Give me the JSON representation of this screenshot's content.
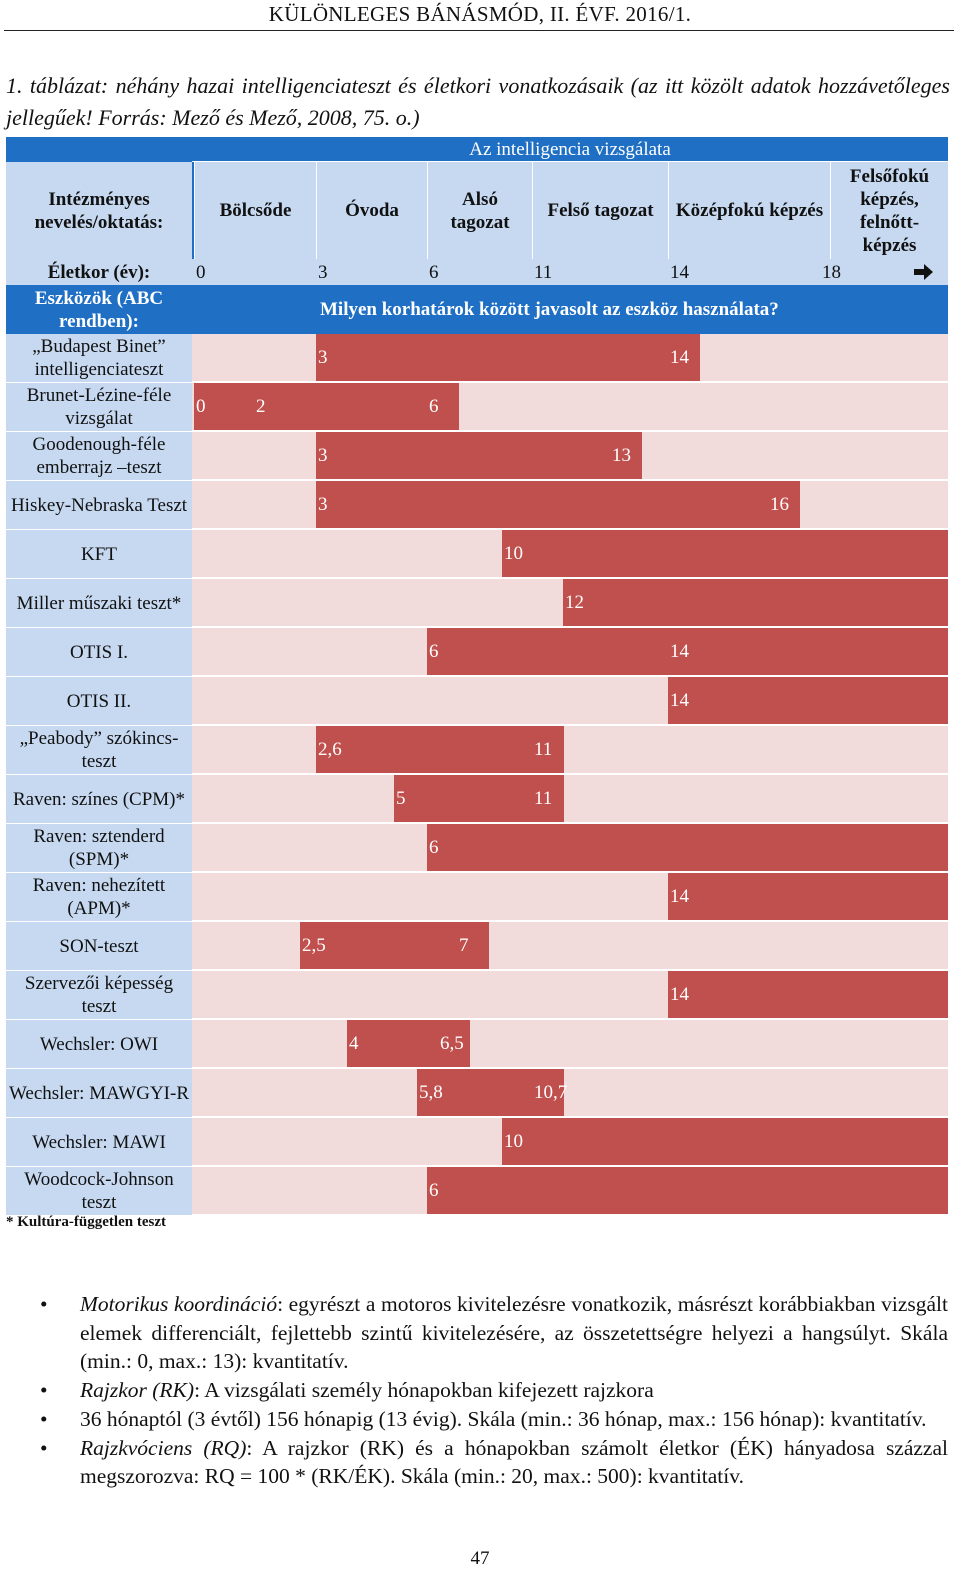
{
  "header": "KÜLÖNLEGES BÁNÁSMÓD, II. ÉVF. 2016/1.",
  "caption": "1. táblázat: néhány hazai intelligenciateszt és életkori vonatkozásaik (az itt közölt adatok hozzávetőleges jellegűek! Forrás: Mező és Mező, 2008, 75. o.)",
  "table": {
    "top_header": "Az intelligencia vizsgálata",
    "row_label_head": "Intézményes nevelés/oktatás:",
    "levels": [
      "Bölcsőde",
      "Óvoda",
      "Alsó tagozat",
      "Felső tagozat",
      "Középfokú képzés",
      "Felsőfokú képzés, felnőtt-képzés"
    ],
    "age_label": "Életkor (év):",
    "age_ticks": [
      "0",
      "3",
      "6",
      "11",
      "14",
      "18"
    ],
    "tools_label": "Eszközök (ABC rendben):",
    "question": "Milyen korhatárok között javasolt az eszköz használata?",
    "rows": [
      {
        "name": "„Budapest Binet” intelligenciateszt",
        "start": 3,
        "end": 14,
        "labels": [
          "3",
          "14"
        ]
      },
      {
        "name": "Brunet-Lézine-féle vizsgálat",
        "start": 0,
        "end": 6,
        "labels": [
          "0",
          "2",
          "6"
        ]
      },
      {
        "name": "Goodenough-féle emberrajz –teszt",
        "start": 3,
        "end": 13,
        "labels": [
          "3",
          "13"
        ]
      },
      {
        "name": "Hiskey-Nebraska Teszt",
        "start": 3,
        "end": 16,
        "labels": [
          "3",
          "16"
        ]
      },
      {
        "name": "KFT",
        "start": 10,
        "end": null,
        "labels": [
          "10"
        ]
      },
      {
        "name": "Miller műszaki teszt*",
        "start": 12,
        "end": null,
        "labels": [
          "12"
        ]
      },
      {
        "name": "OTIS I.",
        "start": 6,
        "end": null,
        "labels": [
          "6",
          "14"
        ]
      },
      {
        "name": "OTIS II.",
        "start": 14,
        "end": null,
        "labels": [
          "14"
        ]
      },
      {
        "name": "„Peabody” szókincs-teszt",
        "start": 2.6,
        "end": 11,
        "labels": [
          "2,6",
          "11"
        ]
      },
      {
        "name": "Raven: színes (CPM)*",
        "start": 5,
        "end": 11,
        "labels": [
          "5",
          "11"
        ]
      },
      {
        "name": "Raven: sztenderd (SPM)*",
        "start": 6,
        "end": null,
        "labels": [
          "6"
        ]
      },
      {
        "name": "Raven: nehezített (APM)*",
        "start": 14,
        "end": null,
        "labels": [
          "14"
        ]
      },
      {
        "name": "SON-teszt",
        "start": 2.5,
        "end": 7,
        "labels": [
          "2,5",
          "7"
        ]
      },
      {
        "name": "Szervezői képesség teszt",
        "start": 14,
        "end": null,
        "labels": [
          "14"
        ]
      },
      {
        "name": "Wechsler: OWI",
        "start": 4,
        "end": 6.5,
        "labels": [
          "4",
          "6,5"
        ]
      },
      {
        "name": "Wechsler: MAWGYI-R",
        "start": 5.8,
        "end": 10.7,
        "labels": [
          "5,8",
          "10,7"
        ]
      },
      {
        "name": "Wechsler: MAWI",
        "start": 10,
        "end": null,
        "labels": [
          "10"
        ]
      },
      {
        "name": "Woodcock-Johnson teszt",
        "start": 6,
        "end": null,
        "labels": [
          "6"
        ]
      }
    ],
    "footnote": "* Kultúra-független teszt",
    "colors": {
      "header_blue": "#1f6fc5",
      "label_blue": "#c6d9f1",
      "bar_red": "#c0504d",
      "bg_pink": "#f2dcdb"
    },
    "arrow_icon": "right-arrow-icon"
  },
  "bullets": [
    {
      "term": "Motorikus koordináció",
      "text": ": egyrészt a motoros kivitelezésre vonatkozik, másrészt korábbiakban vizsgált elemek differenciált, fejlettebb szintű kivitelezésére, az összetettségre helyezi a hangsúlyt. Skála (min.: 0, max.: 13): kvantitatív."
    },
    {
      "term": "Rajzkor (RK)",
      "text": ": A vizsgálati személy hónapokban kifejezett rajzkora"
    },
    {
      "term": "",
      "text": "36 hónaptól (3 évtől) 156 hónapig (13 évig).  Skála (min.: 36 hónap, max.: 156 hónap): kvantitatív."
    },
    {
      "term": "Rajzkvóciens (RQ)",
      "text": ": A rajzkor (RK) és a hónapokban számolt életkor (ÉK) hányadosa százzal megszorozva: RQ = 100 * (RK/ÉK). Skála (min.: 20, max.: 500): kvantitatív."
    }
  ],
  "page_number": "47"
}
